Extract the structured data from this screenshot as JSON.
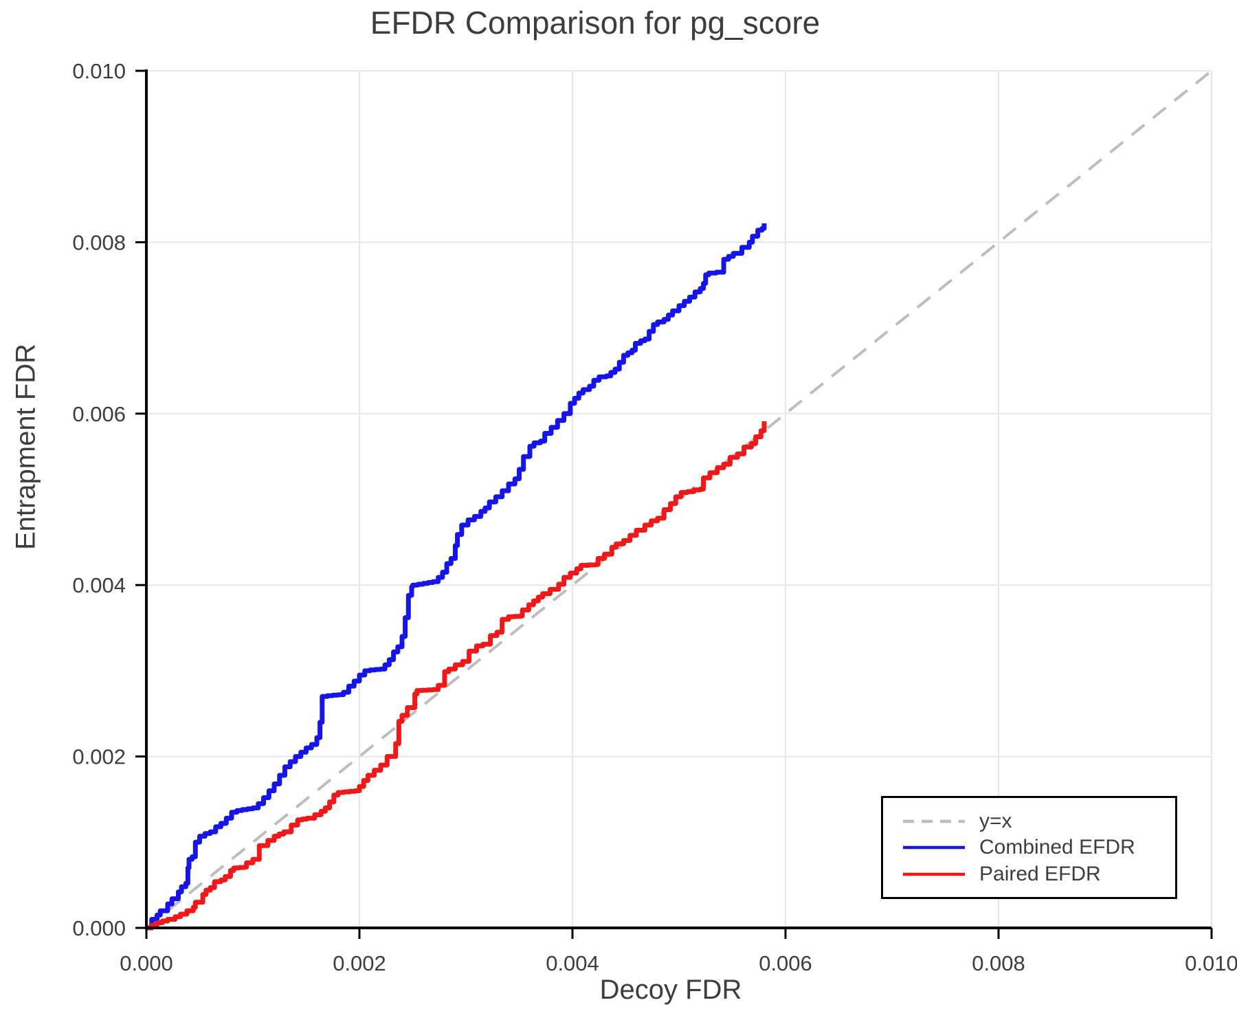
{
  "title": "EFDR Comparison for pg_score",
  "colors": {
    "combined": "#1515e8",
    "paired": "#f01818",
    "identity": "#bdbdbd",
    "grid": "#e7e7e7",
    "spine": "#000000",
    "text": "#3d3d3d"
  },
  "legend": {
    "items": [
      {
        "label": "y=x",
        "color": "#bdbdbd",
        "style": "dashed"
      },
      {
        "label": "Combined EFDR",
        "color": "#1515e8",
        "style": "solid"
      },
      {
        "label": "Paired EFDR",
        "color": "#f01818",
        "style": "solid"
      }
    ]
  },
  "chart_data": {
    "type": "line",
    "title": "EFDR Comparison for pg_score",
    "xlabel": "Decoy FDR",
    "ylabel": "Entrapment FDR",
    "xlim": [
      0.0,
      0.01
    ],
    "ylim": [
      0.0,
      0.01
    ],
    "xticks": [
      0.0,
      0.002,
      0.004,
      0.006,
      0.008,
      0.01
    ],
    "xtick_labels": [
      "0.000",
      "0.002",
      "0.004",
      "0.006",
      "0.008",
      "0.010"
    ],
    "yticks": [
      0.0,
      0.002,
      0.004,
      0.006,
      0.008,
      0.01
    ],
    "ytick_labels": [
      "0.000",
      "0.002",
      "0.004",
      "0.006",
      "0.008",
      "0.010"
    ],
    "grid": true,
    "legend_position": "lower right",
    "series": [
      {
        "name": "y=x",
        "color": "#bdbdbd",
        "style": "dashed",
        "step": false,
        "x": [
          0.0,
          0.01
        ],
        "y": [
          0.0,
          0.01
        ]
      },
      {
        "name": "Combined EFDR",
        "color": "#1515e8",
        "style": "solid",
        "step": true,
        "x": [
          0,
          5e-05,
          0.0001,
          0.00013,
          0.0002,
          0.00024,
          0.0003,
          0.00033,
          0.00037,
          0.00039,
          0.0004,
          0.00043,
          0.00046,
          0.0005,
          0.00055,
          0.0006,
          0.00065,
          0.0007,
          0.00075,
          0.0008,
          0.00085,
          0.0009,
          0.001,
          0.00105,
          0.0011,
          0.00115,
          0.0012,
          0.00125,
          0.0013,
          0.00135,
          0.0014,
          0.00145,
          0.0015,
          0.00155,
          0.0016,
          0.00163,
          0.00165,
          0.0017,
          0.0018,
          0.00185,
          0.0019,
          0.00195,
          0.002,
          0.00205,
          0.0021,
          0.0022,
          0.00224,
          0.00228,
          0.00232,
          0.00236,
          0.0024,
          0.00243,
          0.00246,
          0.00249,
          0.0025,
          0.0026,
          0.00269,
          0.00274,
          0.00278,
          0.00282,
          0.00286,
          0.0029,
          0.00292,
          0.00296,
          0.00302,
          0.00308,
          0.00314,
          0.00318,
          0.00322,
          0.00328,
          0.00334,
          0.0034,
          0.00346,
          0.0035,
          0.00354,
          0.0036,
          0.00364,
          0.0037,
          0.00374,
          0.0038,
          0.00386,
          0.00392,
          0.00398,
          0.00402,
          0.00406,
          0.0041,
          0.00416,
          0.0042,
          0.00425,
          0.00432,
          0.00436,
          0.0044,
          0.00444,
          0.00448,
          0.00452,
          0.00456,
          0.00459,
          0.00464,
          0.00468,
          0.00472,
          0.00476,
          0.0048,
          0.00486,
          0.0049,
          0.00494,
          0.005,
          0.00505,
          0.0051,
          0.00515,
          0.0052,
          0.00523,
          0.00525,
          0.00528,
          0.00535,
          0.00542,
          0.00551,
          0.00559,
          0.00566,
          0.00569,
          0.00574,
          0.00578,
          0.0058
        ],
        "y": [
          0,
          0.0001,
          0.00015,
          0.0002,
          0.00028,
          0.00034,
          0.00042,
          0.00048,
          0.00052,
          0.0007,
          0.0008,
          0.00083,
          0.001,
          0.00107,
          0.0011,
          0.00112,
          0.00118,
          0.00122,
          0.00128,
          0.00135,
          0.00137,
          0.00138,
          0.0014,
          0.00145,
          0.00152,
          0.0016,
          0.00168,
          0.00178,
          0.00188,
          0.00194,
          0.002,
          0.00205,
          0.0021,
          0.00214,
          0.00222,
          0.0024,
          0.0027,
          0.00271,
          0.00272,
          0.00275,
          0.00282,
          0.00288,
          0.00295,
          0.003,
          0.00301,
          0.00302,
          0.00307,
          0.00313,
          0.00322,
          0.00328,
          0.0034,
          0.00362,
          0.00388,
          0.00398,
          0.004,
          0.00402,
          0.00404,
          0.00409,
          0.00415,
          0.00425,
          0.00431,
          0.00446,
          0.00459,
          0.0047,
          0.00476,
          0.0048,
          0.00486,
          0.0049,
          0.00497,
          0.00503,
          0.0051,
          0.00518,
          0.00524,
          0.00535,
          0.0055,
          0.00562,
          0.00566,
          0.00568,
          0.00577,
          0.00584,
          0.00592,
          0.006,
          0.00612,
          0.00618,
          0.00624,
          0.00628,
          0.00632,
          0.00639,
          0.00643,
          0.00644,
          0.00648,
          0.00652,
          0.0066,
          0.00668,
          0.00671,
          0.00674,
          0.00682,
          0.00685,
          0.00687,
          0.00696,
          0.00704,
          0.00707,
          0.0071,
          0.00715,
          0.0072,
          0.00726,
          0.00731,
          0.00736,
          0.00742,
          0.00746,
          0.00752,
          0.00762,
          0.00764,
          0.00765,
          0.0078,
          0.00787,
          0.00794,
          0.008,
          0.00807,
          0.00814,
          0.00816,
          0.00822
        ]
      },
      {
        "name": "Paired EFDR",
        "color": "#f01818",
        "style": "solid",
        "step": true,
        "x": [
          0,
          0.0001,
          0.0002,
          0.00027,
          0.00032,
          0.00038,
          0.00044,
          0.00046,
          0.00053,
          0.00056,
          0.0006,
          0.00064,
          0.0007,
          0.00074,
          0.00079,
          0.00082,
          0.00092,
          0.00094,
          0.001,
          0.00106,
          0.00114,
          0.0012,
          0.00129,
          0.00136,
          0.00142,
          0.00151,
          0.00158,
          0.00164,
          0.00168,
          0.00172,
          0.00176,
          0.0018,
          0.00196,
          0.002,
          0.00204,
          0.00208,
          0.00214,
          0.0022,
          0.00226,
          0.00234,
          0.00237,
          0.0024,
          0.00245,
          0.00252,
          0.00254,
          0.00269,
          0.00274,
          0.0028,
          0.00284,
          0.0029,
          0.00297,
          0.00303,
          0.0031,
          0.00316,
          0.00323,
          0.00329,
          0.00334,
          0.0034,
          0.00351,
          0.00353,
          0.00359,
          0.00368,
          0.00372,
          0.00379,
          0.00387,
          0.00392,
          0.00398,
          0.00404,
          0.00408,
          0.00422,
          0.00424,
          0.0043,
          0.00437,
          0.00441,
          0.00448,
          0.00454,
          0.0046,
          0.00468,
          0.00474,
          0.0048,
          0.00486,
          0.00492,
          0.00497,
          0.00502,
          0.00508,
          0.00514,
          0.0052,
          0.00523,
          0.00529,
          0.00536,
          0.00542,
          0.00548,
          0.00555,
          0.00561,
          0.00568,
          0.00572,
          0.00577,
          0.0058
        ],
        "y": [
          0,
          6e-05,
          0.0001,
          0.00013,
          0.00016,
          0.0002,
          0.00024,
          0.0003,
          0.00039,
          0.00044,
          0.00047,
          0.00054,
          0.00056,
          0.0006,
          0.00067,
          0.0007,
          0.00071,
          0.00076,
          0.0008,
          0.00096,
          0.00102,
          0.00107,
          0.00112,
          0.0012,
          0.00126,
          0.00128,
          0.00132,
          0.00136,
          0.0014,
          0.00147,
          0.00155,
          0.00158,
          0.0016,
          0.00165,
          0.00172,
          0.00178,
          0.00184,
          0.0019,
          0.002,
          0.00215,
          0.00241,
          0.00248,
          0.00257,
          0.00273,
          0.00277,
          0.00278,
          0.00283,
          0.00299,
          0.00302,
          0.00307,
          0.00311,
          0.00323,
          0.00329,
          0.00331,
          0.00341,
          0.00345,
          0.0036,
          0.00363,
          0.00364,
          0.00371,
          0.00377,
          0.00386,
          0.0039,
          0.00395,
          0.00401,
          0.00409,
          0.00414,
          0.00419,
          0.00423,
          0.00424,
          0.00431,
          0.00436,
          0.00444,
          0.00448,
          0.00452,
          0.00458,
          0.00464,
          0.0047,
          0.00475,
          0.00478,
          0.00488,
          0.00495,
          0.00503,
          0.00508,
          0.00509,
          0.00511,
          0.00512,
          0.00525,
          0.00531,
          0.00537,
          0.00541,
          0.00549,
          0.00553,
          0.00561,
          0.00565,
          0.00573,
          0.0058,
          0.00591
        ]
      }
    ]
  }
}
